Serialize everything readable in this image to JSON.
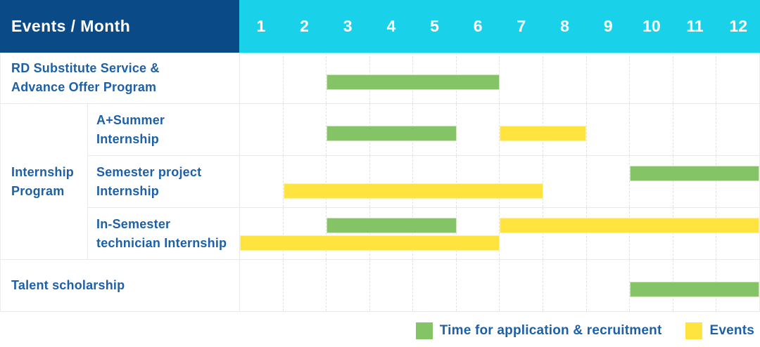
{
  "colors": {
    "header_blue": "#0a4a87",
    "month_cyan": "#19d2ea",
    "label_blue": "#1e60a8",
    "application_green": "#85c367",
    "event_yellow": "#ffe33e",
    "grid_line": "#e3e3e3",
    "row_border": "#e9e9e9"
  },
  "header": {
    "title": "Events / Month",
    "months": [
      "1",
      "2",
      "3",
      "4",
      "5",
      "6",
      "7",
      "8",
      "9",
      "10",
      "11",
      "12"
    ]
  },
  "legend": {
    "items": [
      {
        "label": "Time for application & recruitment",
        "type": "application"
      },
      {
        "label": "Events",
        "type": "event"
      }
    ]
  },
  "chart_data": {
    "type": "gantt",
    "unit": "month",
    "x_range": [
      1,
      12
    ],
    "months": [
      1,
      2,
      3,
      4,
      5,
      6,
      7,
      8,
      9,
      10,
      11,
      12
    ],
    "corner_header": "Events / Month",
    "group_label": [
      "Internship",
      "Program"
    ],
    "legend": {
      "application": "Time for application & recruitment",
      "event": "Events"
    },
    "rows": [
      {
        "label": [
          "RD Substitute Service &",
          "Advance Offer Program"
        ],
        "group": null,
        "lines": [
          [
            {
              "type": "application",
              "start": 3,
              "end": 6
            }
          ]
        ]
      },
      {
        "label": [
          "A+Summer",
          "Internship"
        ],
        "group": "Internship Program",
        "lines": [
          [
            {
              "type": "application",
              "start": 3,
              "end": 5
            },
            {
              "type": "event",
              "start": 7,
              "end": 8
            }
          ]
        ]
      },
      {
        "label": [
          "Semester project",
          "Internship"
        ],
        "group": "Internship Program",
        "lines": [
          [
            {
              "type": "application",
              "start": 10,
              "end": 12
            }
          ],
          [
            {
              "type": "event",
              "start": 2,
              "end": 7
            }
          ]
        ]
      },
      {
        "label": [
          "In-Semester",
          "technician Internship"
        ],
        "group": "Internship Program",
        "lines": [
          [
            {
              "type": "application",
              "start": 3,
              "end": 5
            },
            {
              "type": "event",
              "start": 7,
              "end": 12
            }
          ],
          [
            {
              "type": "event",
              "start": 1,
              "end": 6
            }
          ]
        ]
      },
      {
        "label": [
          "Talent scholarship"
        ],
        "group": null,
        "lines": [
          [
            {
              "type": "application",
              "start": 10,
              "end": 12
            }
          ]
        ]
      }
    ]
  }
}
